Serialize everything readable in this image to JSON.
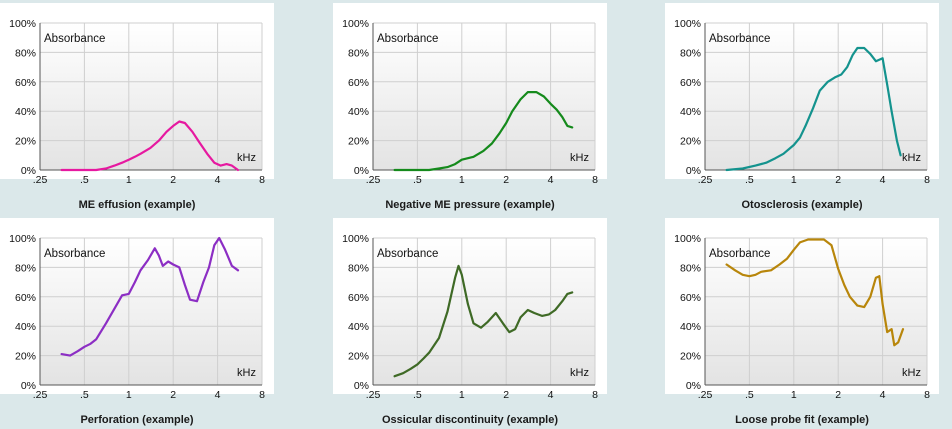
{
  "chart_data": [
    {
      "type": "line",
      "caption": "ME effusion (example)",
      "ylabel": "Absorbance",
      "xunit": "kHz",
      "xscale": "log",
      "xticks": [
        ".25",
        ".5",
        "1",
        "2",
        "4",
        "8"
      ],
      "yticks": [
        "0%",
        "20%",
        "40%",
        "60%",
        "80%",
        "100%"
      ],
      "ylim": [
        0,
        100
      ],
      "xlim": [
        0.25,
        8
      ],
      "color": "#e619a0",
      "series": [
        {
          "x": [
            0.35,
            0.5,
            0.6,
            0.7,
            0.8,
            0.9,
            1.0,
            1.1,
            1.2,
            1.4,
            1.6,
            1.8,
            2.0,
            2.2,
            2.4,
            2.7,
            3.0,
            3.4,
            3.8,
            4.2,
            4.6,
            5.0,
            5.5
          ],
          "y": [
            0,
            0,
            0,
            1,
            3,
            5,
            7,
            9,
            11,
            15,
            20,
            26,
            30,
            33,
            32,
            26,
            19,
            11,
            5,
            3,
            4,
            3,
            0
          ]
        }
      ]
    },
    {
      "type": "line",
      "caption": "Negative ME pressure (example)",
      "ylabel": "Absorbance",
      "xunit": "kHz",
      "xscale": "log",
      "xticks": [
        ".25",
        ".5",
        "1",
        "2",
        "4",
        "8"
      ],
      "yticks": [
        "0%",
        "20%",
        "40%",
        "60%",
        "80%",
        "100%"
      ],
      "ylim": [
        0,
        100
      ],
      "xlim": [
        0.25,
        8
      ],
      "color": "#158a1c",
      "series": [
        {
          "x": [
            0.35,
            0.5,
            0.6,
            0.7,
            0.8,
            0.9,
            1.0,
            1.1,
            1.2,
            1.4,
            1.6,
            1.8,
            2.0,
            2.2,
            2.5,
            2.8,
            3.2,
            3.6,
            4.0,
            4.4,
            4.8,
            5.2,
            5.6
          ],
          "y": [
            0,
            0,
            0,
            1,
            2,
            4,
            7,
            8,
            9,
            13,
            18,
            25,
            32,
            40,
            48,
            53,
            53,
            50,
            45,
            41,
            36,
            30,
            29
          ]
        }
      ]
    },
    {
      "type": "line",
      "caption": "Otosclerosis (example)",
      "ylabel": "Absorbance",
      "xunit": "kHz",
      "xscale": "log",
      "xticks": [
        ".25",
        ".5",
        "1",
        "2",
        "4",
        "8"
      ],
      "yticks": [
        "0%",
        "20%",
        "40%",
        "60%",
        "80%",
        "100%"
      ],
      "ylim": [
        0,
        100
      ],
      "xlim": [
        0.25,
        8
      ],
      "color": "#14938e",
      "series": [
        {
          "x": [
            0.35,
            0.45,
            0.55,
            0.65,
            0.75,
            0.85,
            1.0,
            1.1,
            1.2,
            1.35,
            1.5,
            1.7,
            1.9,
            2.1,
            2.3,
            2.5,
            2.7,
            3.0,
            3.3,
            3.6,
            4.0,
            4.3,
            4.6,
            5.0,
            5.3
          ],
          "y": [
            0,
            1,
            3,
            5,
            8,
            11,
            17,
            22,
            30,
            42,
            54,
            60,
            63,
            65,
            70,
            78,
            83,
            83,
            79,
            74,
            76,
            58,
            40,
            20,
            10
          ]
        }
      ]
    },
    {
      "type": "line",
      "caption": "Perforation (example)",
      "ylabel": "Absorbance",
      "xunit": "kHz",
      "xscale": "log",
      "xticks": [
        ".25",
        ".5",
        "1",
        "2",
        "4",
        "8"
      ],
      "yticks": [
        "0%",
        "20%",
        "40%",
        "60%",
        "80%",
        "100%"
      ],
      "ylim": [
        0,
        100
      ],
      "xlim": [
        0.25,
        8
      ],
      "color": "#8c2ec4",
      "series": [
        {
          "x": [
            0.35,
            0.4,
            0.45,
            0.5,
            0.55,
            0.6,
            0.7,
            0.8,
            0.9,
            1.0,
            1.1,
            1.2,
            1.35,
            1.5,
            1.6,
            1.7,
            1.85,
            2.0,
            2.2,
            2.4,
            2.6,
            2.9,
            3.2,
            3.5,
            3.8,
            4.1,
            4.5,
            5.0,
            5.5
          ],
          "y": [
            21,
            20,
            23,
            26,
            28,
            31,
            42,
            52,
            61,
            62,
            70,
            78,
            85,
            93,
            88,
            81,
            84,
            82,
            80,
            68,
            58,
            57,
            70,
            80,
            95,
            100,
            92,
            81,
            78
          ]
        }
      ]
    },
    {
      "type": "line",
      "caption": "Ossicular discontinuity (example)",
      "ylabel": "Absorbance",
      "xunit": "kHz",
      "xscale": "log",
      "xticks": [
        ".25",
        ".5",
        "1",
        "2",
        "4",
        "8"
      ],
      "yticks": [
        "0%",
        "20%",
        "40%",
        "60%",
        "80%",
        "100%"
      ],
      "ylim": [
        0,
        100
      ],
      "xlim": [
        0.25,
        8
      ],
      "color": "#3f6a26",
      "series": [
        {
          "x": [
            0.35,
            0.4,
            0.45,
            0.5,
            0.55,
            0.6,
            0.7,
            0.8,
            0.9,
            0.95,
            1.0,
            1.1,
            1.2,
            1.35,
            1.5,
            1.7,
            1.9,
            2.1,
            2.3,
            2.5,
            2.8,
            3.1,
            3.5,
            3.9,
            4.3,
            4.8,
            5.2,
            5.6
          ],
          "y": [
            6,
            8,
            11,
            14,
            18,
            22,
            32,
            50,
            73,
            81,
            75,
            55,
            42,
            39,
            43,
            49,
            42,
            36,
            38,
            46,
            51,
            49,
            47,
            48,
            51,
            57,
            62,
            63
          ]
        }
      ]
    },
    {
      "type": "line",
      "caption": "Loose probe fit (example)",
      "ylabel": "Absorbance",
      "xunit": "kHz",
      "xscale": "log",
      "xticks": [
        ".25",
        ".5",
        "1",
        "2",
        "4",
        "8"
      ],
      "yticks": [
        "0%",
        "20%",
        "40%",
        "60%",
        "80%",
        "100%"
      ],
      "ylim": [
        0,
        100
      ],
      "xlim": [
        0.25,
        8
      ],
      "color": "#b8860b",
      "series": [
        {
          "x": [
            0.35,
            0.4,
            0.45,
            0.5,
            0.55,
            0.6,
            0.7,
            0.8,
            0.9,
            1.0,
            1.1,
            1.25,
            1.4,
            1.6,
            1.8,
            2.0,
            2.2,
            2.4,
            2.7,
            3.0,
            3.3,
            3.6,
            3.8,
            4.0,
            4.3,
            4.6,
            4.8,
            5.1,
            5.5
          ],
          "y": [
            82,
            78,
            75,
            74,
            75,
            77,
            78,
            82,
            86,
            92,
            97,
            99,
            99,
            99,
            95,
            79,
            68,
            60,
            54,
            53,
            60,
            73,
            74,
            55,
            36,
            38,
            27,
            29,
            38
          ]
        }
      ]
    }
  ]
}
